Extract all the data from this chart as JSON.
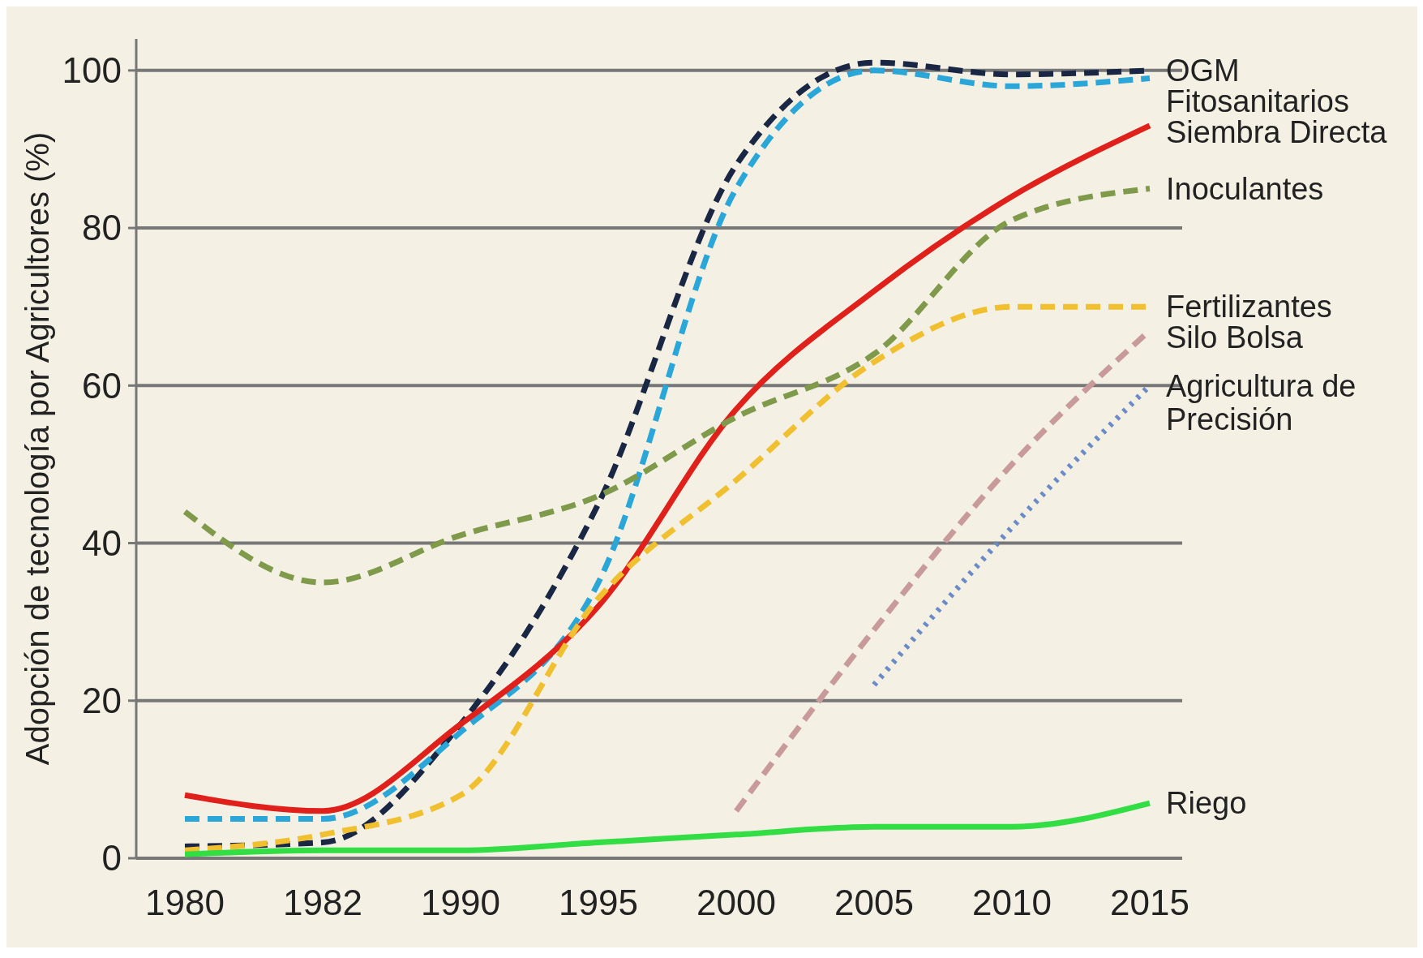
{
  "chart_data": {
    "type": "line",
    "ylabel": "Adopción de tecnología por Agricultores (%)",
    "categories": [
      "1980",
      "1982",
      "1990",
      "1995",
      "2000",
      "2005",
      "2010",
      "2015"
    ],
    "ylim": [
      0,
      104
    ],
    "yticks": [
      0,
      20,
      40,
      60,
      80,
      100
    ],
    "grid": "y",
    "legend": false,
    "marker": "none",
    "series": [
      {
        "name": "OGM",
        "color": "#1a2744",
        "line_style": "dashed",
        "values": [
          1.5,
          2,
          17,
          45,
          88,
          101,
          99.5,
          100
        ]
      },
      {
        "name": "Fitosanitarios",
        "color": "#2aa6d8",
        "line_style": "dashed",
        "values": [
          5,
          5,
          16,
          35,
          85,
          100,
          98,
          99
        ]
      },
      {
        "name": "Siembra Directa",
        "color": "#e0201b",
        "line_style": "solid",
        "values": [
          8,
          6,
          17,
          32,
          57,
          72,
          84,
          93
        ]
      },
      {
        "name": "Inoculantes",
        "color": "#7f9a4a",
        "line_style": "dashed",
        "values": [
          44,
          35,
          41,
          46,
          56,
          64,
          81,
          85
        ]
      },
      {
        "name": "Fertilizantes",
        "color": "#f0c030",
        "line_style": "dashed",
        "values": [
          1,
          3,
          8,
          33,
          48,
          63,
          70,
          70
        ]
      },
      {
        "name": "Silo Bolsa",
        "color": "#c89a9a",
        "line_style": "dashed",
        "values": [
          null,
          null,
          null,
          null,
          6,
          29,
          50,
          67
        ]
      },
      {
        "name": "Agricultura de Precisión",
        "color": "#6a8ac8",
        "line_style": "dotted",
        "values": [
          null,
          null,
          null,
          null,
          null,
          22,
          42,
          60
        ]
      },
      {
        "name": "Riego",
        "color": "#33dd44",
        "line_style": "solid",
        "values": [
          0.5,
          1,
          1,
          2,
          3,
          4,
          4,
          7
        ]
      }
    ]
  }
}
